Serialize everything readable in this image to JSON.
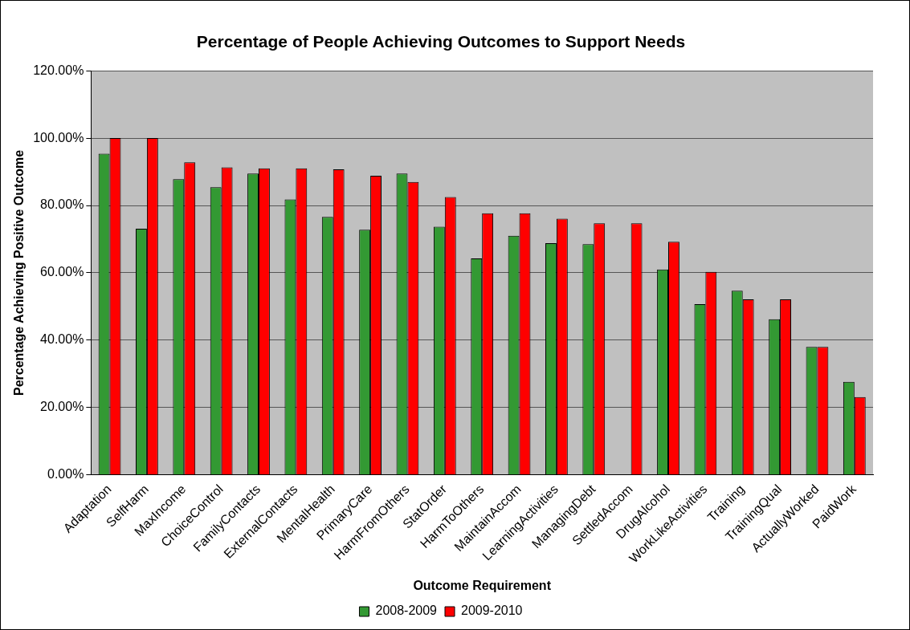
{
  "chart_data": {
    "type": "bar",
    "title": "Percentage of People Achieving Outcomes to Support Needs",
    "xlabel": "Outcome Requirement",
    "ylabel": "Percentage Achieving Positive Outcome",
    "categories": [
      "Adaptation",
      "SelfHarm",
      "MaxIncome",
      "ChoiceControl",
      "FamilyContacts",
      "ExternalContacts",
      "MentalHealth",
      "PrimaryCare",
      "HarmFromOthers",
      "StatOrder",
      "HarmToOthers",
      "MaintainAccom",
      "LearningActivities",
      "ManagingDebt",
      "SettledAccom",
      "DrugAlcohol",
      "WorkLikeActivities",
      "Training",
      "TrainingQual",
      "ActuallyWorked",
      "PaidWork"
    ],
    "series": [
      {
        "name": "2008-2009",
        "color": "#339933",
        "values": [
          95.4,
          73.1,
          87.8,
          85.4,
          89.5,
          81.8,
          76.6,
          72.8,
          89.5,
          73.7,
          64.3,
          71.0,
          68.8,
          68.5,
          null,
          61.0,
          50.7,
          54.7,
          46.2,
          38.0,
          27.6
        ]
      },
      {
        "name": "2009-2010",
        "color": "#ff0000",
        "values": [
          100,
          100,
          92.8,
          91.3,
          91.0,
          91.0,
          90.7,
          88.8,
          87.0,
          82.5,
          77.7,
          77.7,
          76.1,
          74.7,
          74.7,
          69.2,
          60.3,
          52.1,
          52.1,
          38.0,
          23.1
        ]
      }
    ],
    "ylim": [
      0,
      120
    ],
    "yticks": [
      {
        "value": 0,
        "label": "0.00%"
      },
      {
        "value": 20,
        "label": "20.00%"
      },
      {
        "value": 40,
        "label": "40.00%"
      },
      {
        "value": 60,
        "label": "60.00%"
      },
      {
        "value": 80,
        "label": "80.00%"
      },
      {
        "value": 100,
        "label": "100.00%"
      },
      {
        "value": 120,
        "label": "120.00%"
      }
    ],
    "grid": "y",
    "legend": "bottom"
  }
}
